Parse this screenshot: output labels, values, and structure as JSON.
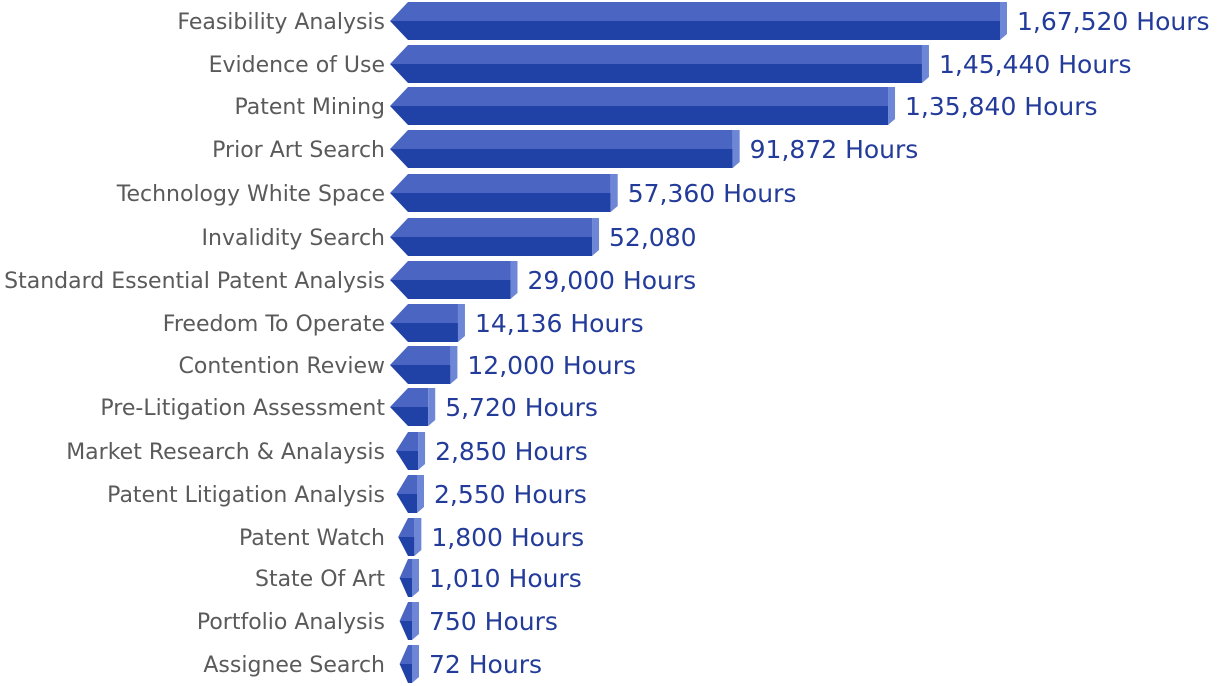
{
  "chart_data": {
    "type": "bar",
    "orientation": "horizontal",
    "title": "",
    "xlabel": "",
    "ylabel": "",
    "grid": false,
    "xlim": [
      0,
      167520
    ],
    "colors": {
      "bar_top": "#4a66c2",
      "bar_bottom": "#2042a6",
      "bar_end": "#6e86d6",
      "value_text": "#233b99",
      "category_text": "#5a5a5a"
    },
    "categories": [
      "Feasibility Analysis",
      "Evidence of Use",
      "Patent Mining",
      "Prior Art Search",
      "Technology White Space",
      "Invalidity Search",
      "Standard Essential Patent Analysis",
      "Freedom To Operate",
      "Contention Review",
      "Pre-Litigation Assessment",
      "Market Research & Analaysis",
      "Patent Litigation Analysis",
      "Patent Watch",
      "State Of Art",
      "Portfolio Analysis",
      "Assignee Search"
    ],
    "values": [
      167520,
      145440,
      135840,
      91872,
      57360,
      52080,
      29000,
      14136,
      12000,
      5720,
      2850,
      2550,
      1800,
      1010,
      750,
      72
    ],
    "value_labels": [
      "1,67,520 Hours",
      "1,45,440 Hours",
      "1,35,840 Hours",
      "91,872 Hours",
      "57,360 Hours",
      "52,080",
      "29,000 Hours",
      "14,136 Hours",
      "12,000 Hours",
      "5,720 Hours",
      "2,850 Hours",
      "2,550 Hours",
      "1,800 Hours",
      "1,010 Hours",
      "750 Hours",
      "72 Hours"
    ]
  }
}
